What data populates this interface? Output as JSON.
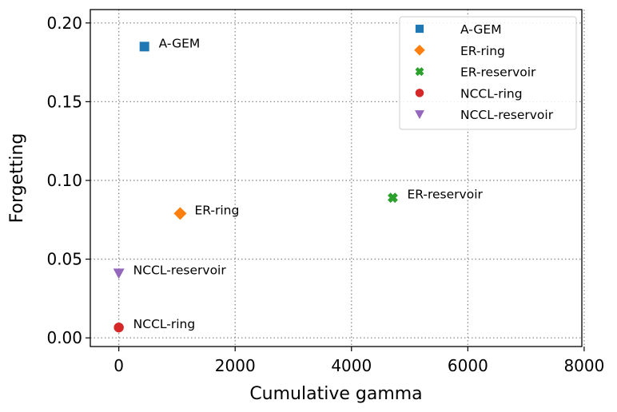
{
  "chart_data": {
    "type": "scatter",
    "title": "",
    "xlabel": "Cumulative gamma",
    "ylabel": "Forgetting",
    "xlim": [
      -490,
      7960
    ],
    "ylim": [
      -0.0055,
      0.2085
    ],
    "xticks": [
      0,
      2000,
      4000,
      6000,
      8000
    ],
    "xtick_labels": [
      "0",
      "2000",
      "4000",
      "6000",
      "8000"
    ],
    "yticks": [
      0.0,
      0.05,
      0.1,
      0.15,
      0.2
    ],
    "ytick_labels": [
      "0.00",
      "0.05",
      "0.10",
      "0.15",
      "0.20"
    ],
    "grid": true,
    "grid_style": "dotted",
    "legend_position": "top-right",
    "series": [
      {
        "name": "A-GEM",
        "marker": "square",
        "color": "#1f77b4",
        "x": 440,
        "y": 0.185,
        "annotation": "A-GEM"
      },
      {
        "name": "ER-ring",
        "marker": "diamond",
        "color": "#ff7f0e",
        "x": 1055,
        "y": 0.079,
        "annotation": "ER-ring"
      },
      {
        "name": "ER-reservoir",
        "marker": "x-filled",
        "color": "#2ca02c",
        "x": 4710,
        "y": 0.089,
        "annotation": "ER-reservoir"
      },
      {
        "name": "NCCL-ring",
        "marker": "circle",
        "color": "#d62728",
        "x": 0,
        "y": 0.0066,
        "annotation": "NCCL-ring"
      },
      {
        "name": "NCCL-reservoir",
        "marker": "triangle-down",
        "color": "#9467bd",
        "x": 0,
        "y": 0.041,
        "annotation": "NCCL-reservoir"
      }
    ]
  }
}
